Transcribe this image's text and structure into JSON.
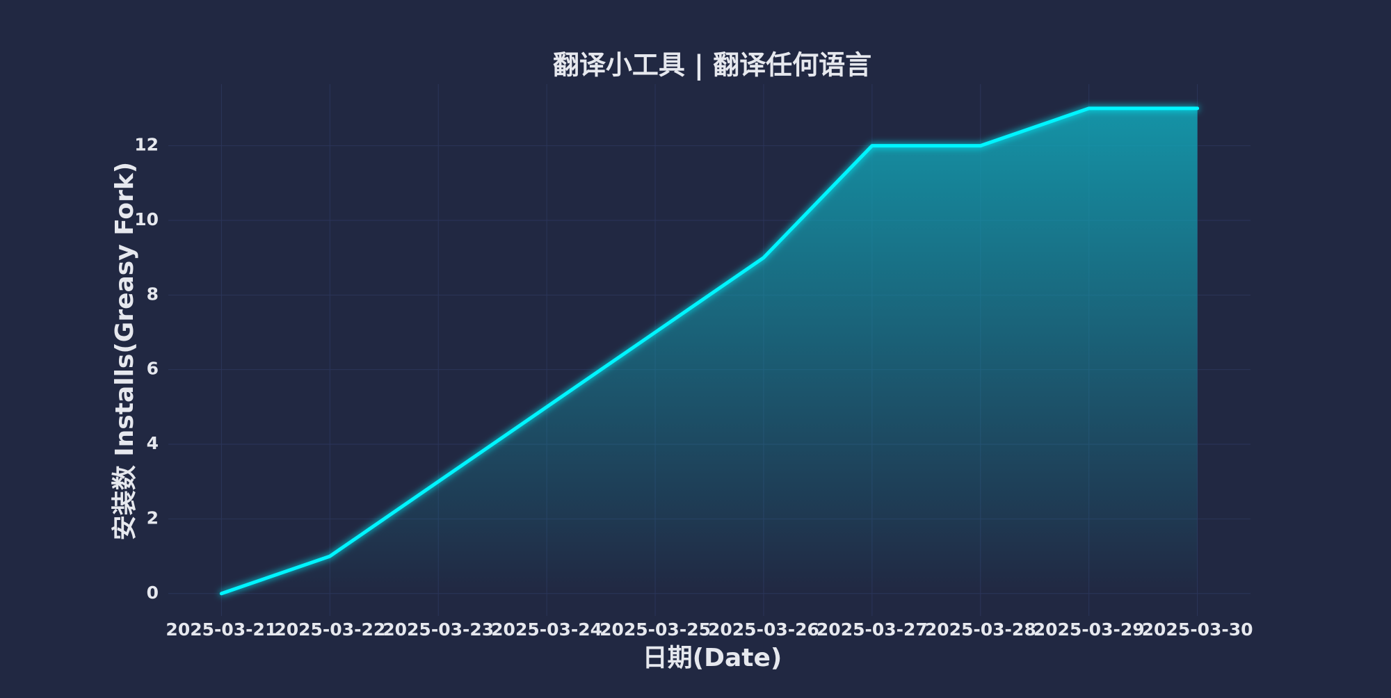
{
  "chart_data": {
    "type": "line",
    "title": "翻译小工具 | 翻译任何语言",
    "x_label": "日期(Date)",
    "y_label": "安装数 Installs(Greasy Fork)",
    "categories": [
      "2025-03-21",
      "2025-03-22",
      "2025-03-23",
      "2025-03-24",
      "2025-03-25",
      "2025-03-26",
      "2025-03-27",
      "2025-03-28",
      "2025-03-29",
      "2025-03-30"
    ],
    "values": [
      0,
      1,
      3,
      5,
      7,
      9,
      12,
      12,
      13,
      13
    ],
    "color": "#00f5ff",
    "ylim": [
      -0.6,
      13.65
    ],
    "yticks": [
      0,
      2,
      4,
      6,
      8,
      10,
      12
    ],
    "grid": true
  }
}
